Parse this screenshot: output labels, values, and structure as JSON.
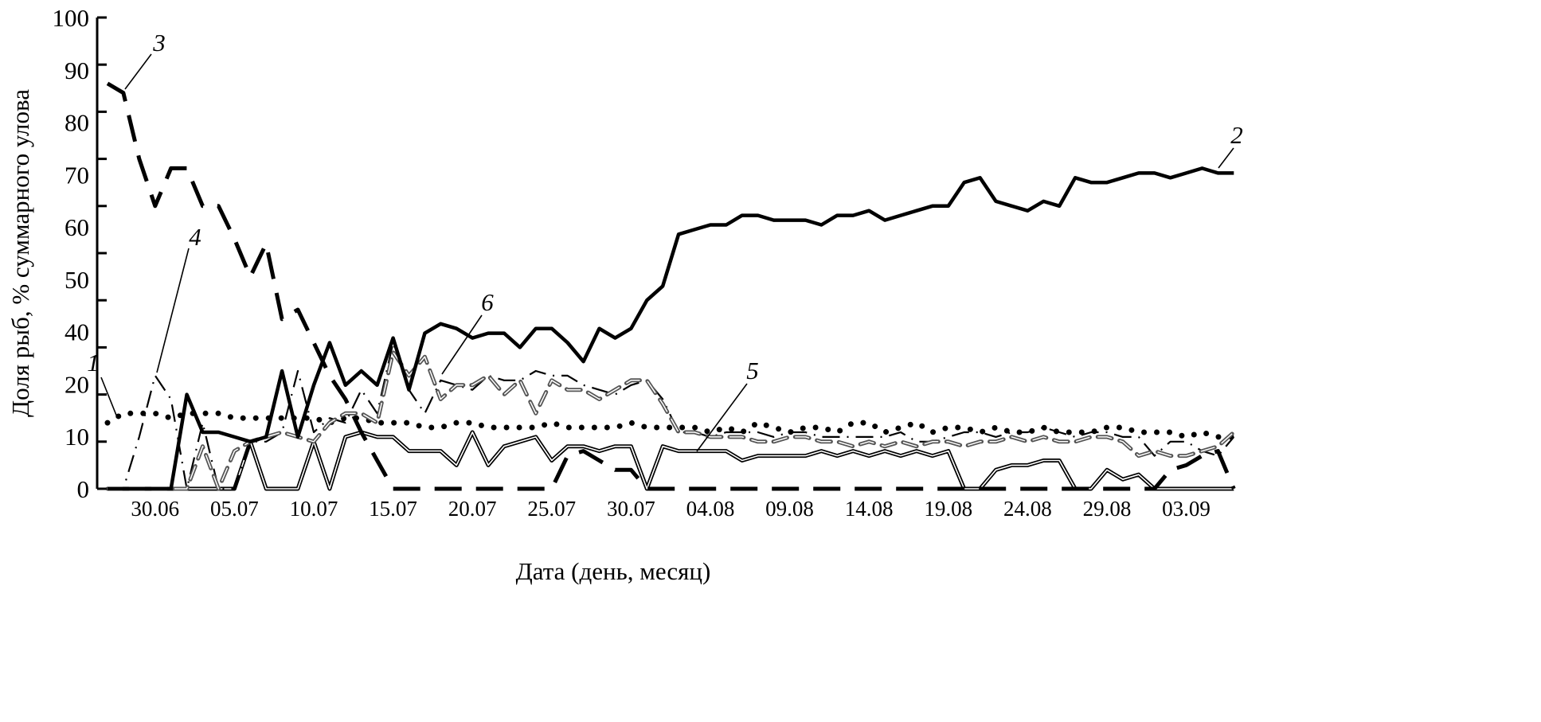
{
  "chart_data": {
    "type": "line",
    "title": "",
    "xlabel": "Дата (день, месяц)",
    "ylabel": "Доля рыб, % суммарного улова",
    "ylim": [
      0,
      100
    ],
    "y_tick_labels": [
      "100",
      "90",
      "80",
      "70",
      "60",
      "50",
      "40",
      "20",
      "10",
      "0"
    ],
    "x_tick_labels": [
      "30.06",
      "05.07",
      "10.07",
      "15.07",
      "20.07",
      "25.07",
      "30.07",
      "04.08",
      "09.08",
      "14.08",
      "19.08",
      "24.08",
      "29.08",
      "03.09"
    ],
    "grid": false,
    "x": [
      "27.06",
      "28.06",
      "29.06",
      "30.06",
      "01.07",
      "02.07",
      "03.07",
      "04.07",
      "05.07",
      "06.07",
      "07.07",
      "08.07",
      "09.07",
      "10.07",
      "11.07",
      "12.07",
      "13.07",
      "14.07",
      "15.07",
      "16.07",
      "17.07",
      "18.07",
      "19.07",
      "20.07",
      "21.07",
      "22.07",
      "23.07",
      "24.07",
      "25.07",
      "26.07",
      "27.07",
      "28.07",
      "29.07",
      "30.07",
      "31.07",
      "01.08",
      "02.08",
      "03.08",
      "04.08",
      "05.08",
      "06.08",
      "07.08",
      "08.08",
      "09.08",
      "10.08",
      "11.08",
      "12.08",
      "13.08",
      "14.08",
      "15.08",
      "16.08",
      "17.08",
      "18.08",
      "19.08",
      "20.08",
      "21.08",
      "22.08",
      "23.08",
      "24.08",
      "25.08",
      "26.08",
      "27.08",
      "28.08",
      "29.08",
      "30.08",
      "31.08",
      "01.09",
      "02.09",
      "03.09",
      "04.09",
      "05.09",
      "06.09"
    ],
    "series": [
      {
        "name": "1",
        "style": "dotted",
        "color": "#000000",
        "values": [
          14,
          16,
          16,
          16,
          15,
          16,
          16,
          16,
          15,
          15,
          15,
          15,
          15,
          15,
          14,
          15,
          15,
          14,
          14,
          14,
          13,
          13,
          14,
          14,
          13,
          13,
          13,
          13,
          14,
          13,
          13,
          13,
          13,
          14,
          13,
          13,
          13,
          13,
          12,
          13,
          12,
          14,
          13,
          12,
          13,
          13,
          12,
          14,
          14,
          12,
          13,
          14,
          12,
          13,
          13,
          12,
          13,
          12,
          12,
          13,
          12,
          12,
          12,
          13,
          13,
          12,
          12,
          12,
          11,
          12,
          11,
          11
        ]
      },
      {
        "name": "2",
        "style": "solid",
        "color": "#000000",
        "values": [
          0,
          0,
          0,
          0,
          0,
          20,
          12,
          12,
          11,
          10,
          11,
          25,
          11,
          22,
          31,
          22,
          25,
          22,
          32,
          21,
          33,
          35,
          34,
          32,
          33,
          33,
          30,
          34,
          34,
          31,
          27,
          34,
          32,
          34,
          40,
          43,
          54,
          55,
          56,
          56,
          58,
          58,
          57,
          57,
          57,
          56,
          58,
          58,
          59,
          57,
          58,
          59,
          60,
          60,
          65,
          66,
          61,
          60,
          59,
          61,
          60,
          66,
          65,
          65,
          66,
          67,
          67,
          66,
          67,
          68,
          67,
          67
        ]
      },
      {
        "name": "3",
        "style": "long-dash",
        "color": "#000000",
        "values": [
          86,
          84,
          70,
          60,
          68,
          68,
          60,
          60,
          53,
          45,
          52,
          36,
          38,
          31,
          24,
          19,
          12,
          6,
          0,
          0,
          0,
          0,
          0,
          0,
          0,
          0,
          0,
          0,
          0,
          7,
          8,
          6,
          4,
          4,
          0,
          0,
          0,
          0,
          0,
          0,
          0,
          0,
          0,
          0,
          0,
          0,
          0,
          0,
          0,
          0,
          0,
          0,
          0,
          0,
          0,
          0,
          0,
          0,
          0,
          0,
          0,
          0,
          0,
          0,
          0,
          0,
          0,
          4,
          5,
          7,
          8,
          0
        ]
      },
      {
        "name": "4",
        "style": "dash-dot",
        "color": "#000000",
        "values": [
          0,
          0,
          11,
          24,
          19,
          0,
          14,
          0,
          0,
          10,
          10,
          12,
          25,
          12,
          15,
          14,
          21,
          16,
          31,
          21,
          16,
          23,
          22,
          21,
          24,
          23,
          23,
          25,
          24,
          24,
          22,
          21,
          20,
          22,
          23,
          19,
          12,
          12,
          11,
          12,
          12,
          12,
          11,
          12,
          12,
          11,
          11,
          11,
          11,
          11,
          12,
          10,
          10,
          11,
          12,
          12,
          11,
          12,
          12,
          13,
          12,
          11,
          12,
          12,
          11,
          11,
          7,
          10,
          10,
          8,
          7,
          11
        ]
      },
      {
        "name": "5",
        "style": "double-line",
        "color": "#000000",
        "values": [
          0,
          0,
          0,
          0,
          0,
          0,
          0,
          0,
          0,
          10,
          0,
          0,
          0,
          10,
          0,
          11,
          12,
          11,
          11,
          8,
          8,
          8,
          5,
          12,
          5,
          9,
          10,
          11,
          6,
          9,
          9,
          8,
          9,
          9,
          0,
          9,
          8,
          8,
          8,
          8,
          6,
          7,
          7,
          7,
          7,
          8,
          7,
          8,
          7,
          8,
          7,
          8,
          7,
          8,
          0,
          0,
          4,
          5,
          5,
          6,
          6,
          0,
          0,
          4,
          2,
          3,
          0,
          0,
          0,
          0,
          0,
          0
        ]
      },
      {
        "name": "6",
        "style": "outlined-dash",
        "color": "#555555",
        "values": [
          0,
          0,
          0,
          0,
          0,
          0,
          9,
          0,
          8,
          10,
          11,
          12,
          11,
          10,
          14,
          16,
          16,
          14,
          29,
          24,
          28,
          19,
          22,
          22,
          24,
          20,
          23,
          16,
          23,
          21,
          21,
          19,
          21,
          23,
          23,
          18,
          12,
          12,
          11,
          11,
          11,
          10,
          10,
          11,
          11,
          10,
          10,
          9,
          10,
          9,
          10,
          9,
          10,
          10,
          9,
          10,
          10,
          11,
          10,
          11,
          10,
          10,
          11,
          11,
          10,
          7,
          8,
          7,
          7,
          8,
          9,
          12
        ]
      }
    ]
  }
}
